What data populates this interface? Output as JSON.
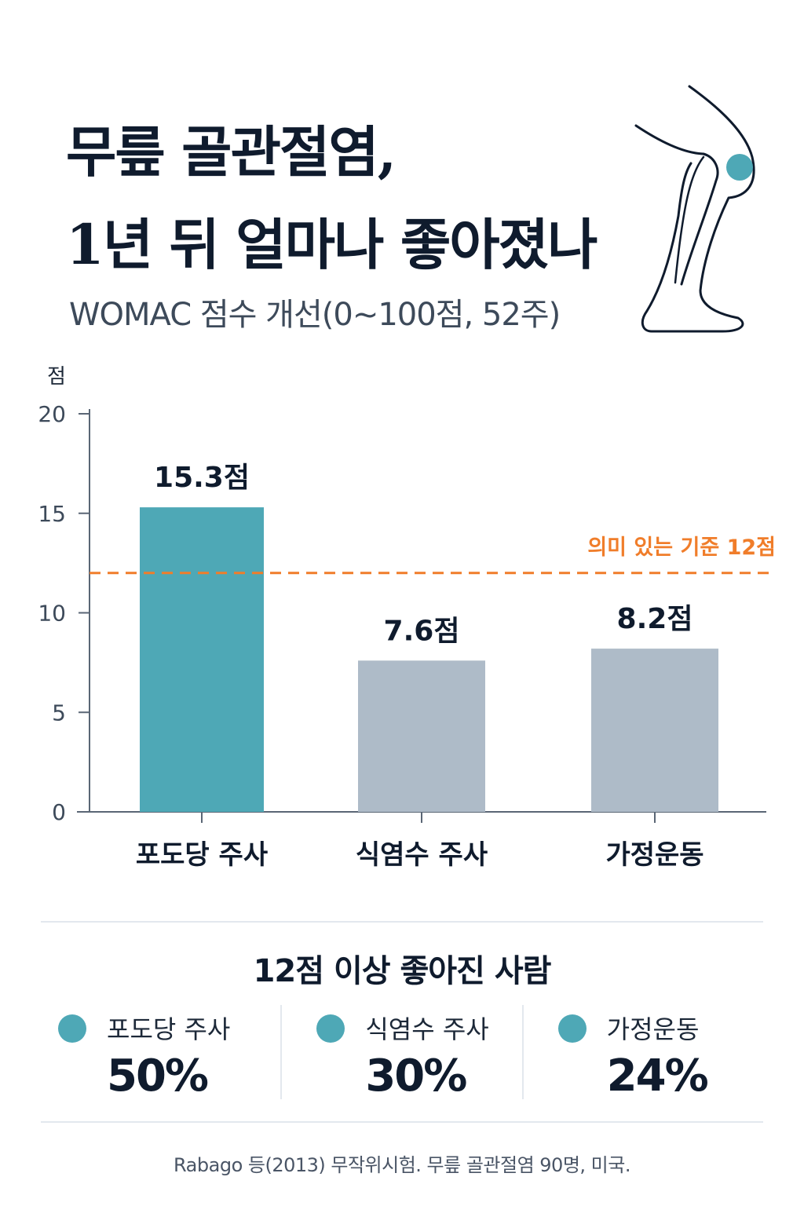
{
  "title": {
    "line1": "무릎 골관절염,",
    "line2": "1년 뒤 얼마나 좋아졌나"
  },
  "subtitle": "WOMAC 점수 개선(0~100점, 52주)",
  "chart_data": {
    "type": "bar",
    "ylabel": "점",
    "ylim": [
      0,
      20
    ],
    "yticks": [
      "0",
      "5",
      "10",
      "15",
      "20"
    ],
    "categories": [
      "포도당 주사",
      "식염수 주사",
      "가정운동"
    ],
    "values": [
      15.3,
      7.6,
      8.2
    ],
    "value_labels": [
      "15.3점",
      "7.6점",
      "8.2점"
    ],
    "bar_colors": [
      "#4ea8b6",
      "#aebbc8",
      "#aebbc8"
    ],
    "reference_line": {
      "value": 12,
      "label": "의미 있는 기준 12점",
      "color": "#f07d2a"
    },
    "grid": false
  },
  "stats": {
    "title": "12점 이상 좋아진 사람",
    "items": [
      {
        "label": "포도당 주사",
        "value": "50%"
      },
      {
        "label": "식염수 주사",
        "value": "30%"
      },
      {
        "label": "가정운동",
        "value": "24%"
      }
    ]
  },
  "source": "Rabago 등(2013) 무작위시험. 무릎 골관절염 90명, 미국.",
  "colors": {
    "accent": "#4ea8b6",
    "muted_bar": "#aebbc8",
    "reference": "#f07d2a",
    "text": "#0f1b2d"
  },
  "icons": {
    "knee": "knee-illustration-icon",
    "stat_dot": "dot-icon"
  }
}
